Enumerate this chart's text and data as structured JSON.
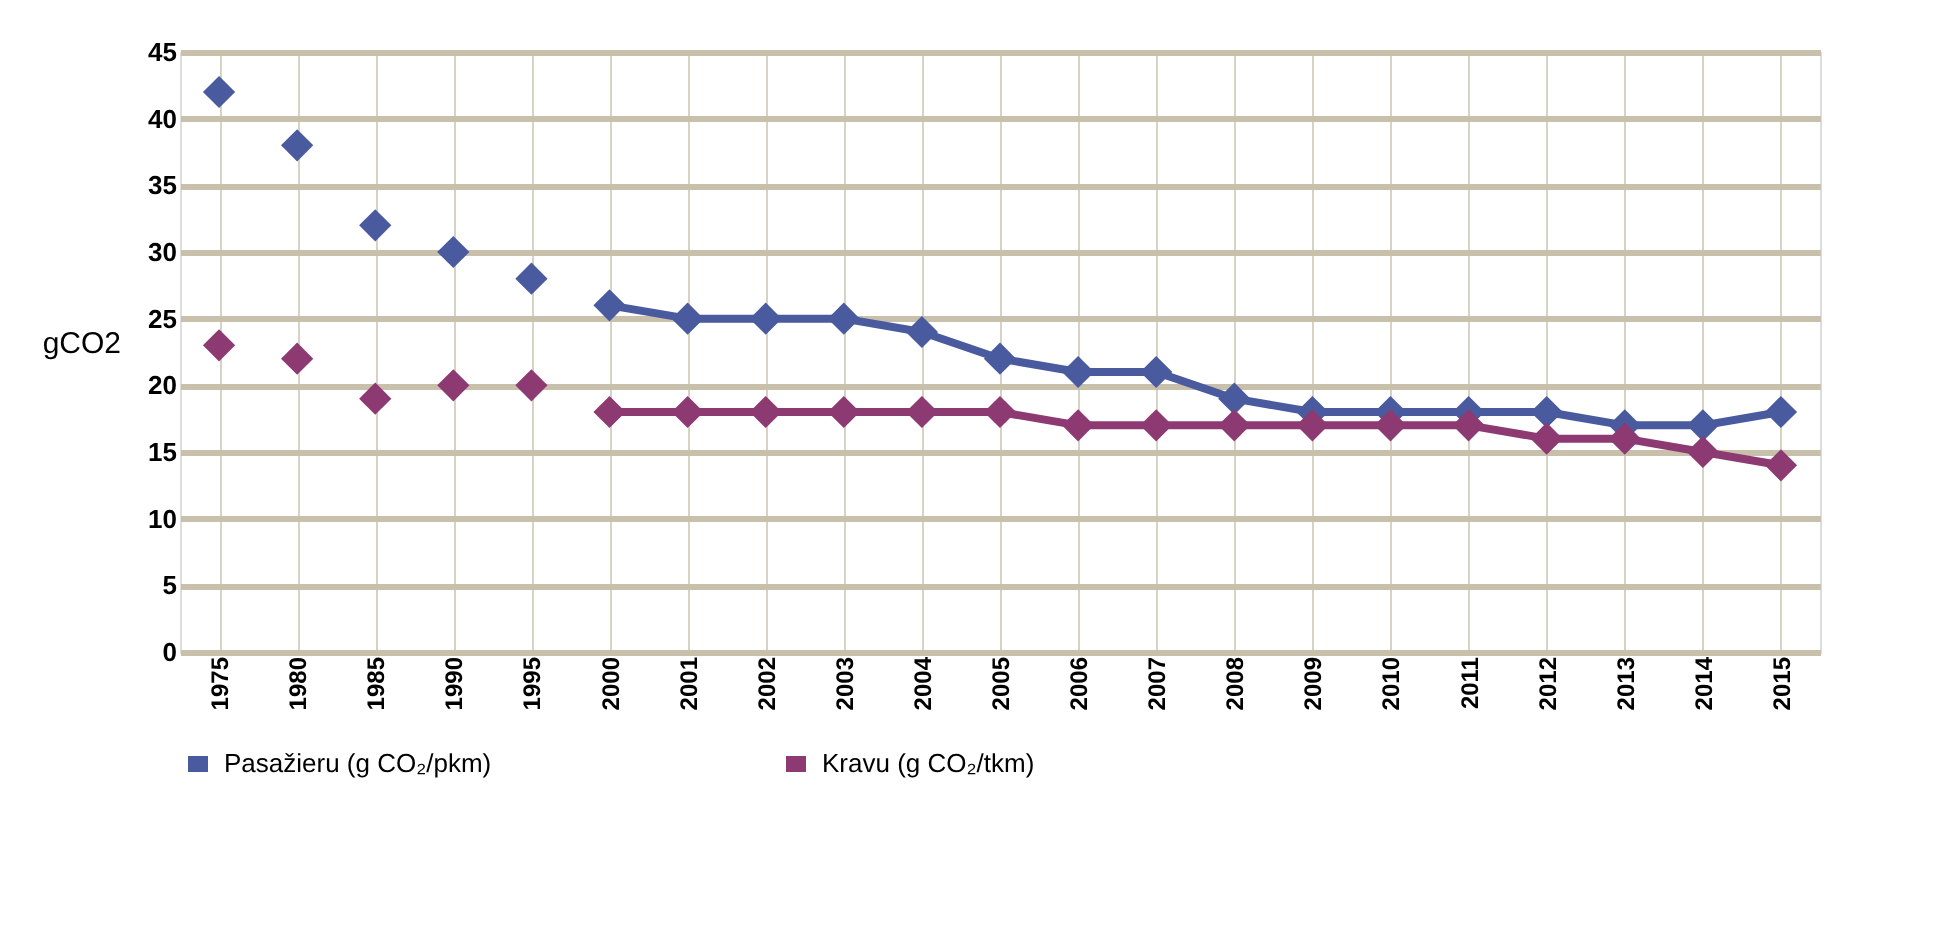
{
  "chart_data": {
    "type": "line",
    "ylabel": "gCO2",
    "categories": [
      "1975",
      "1980",
      "1985",
      "1990",
      "1995",
      "2000",
      "2001",
      "2002",
      "2003",
      "2004",
      "2005",
      "2006",
      "2007",
      "2008",
      "2009",
      "2010",
      "2011",
      "2012",
      "2013",
      "2014",
      "2015"
    ],
    "ylim": [
      0,
      45
    ],
    "yticks": [
      0,
      5,
      10,
      15,
      20,
      25,
      30,
      35,
      40,
      45
    ],
    "grid": true,
    "legend": "bottom",
    "marker": "diamond",
    "series": [
      {
        "type": "scatter",
        "color": "#4a5a9e",
        "values": [
          42,
          38,
          32,
          30,
          28,
          null,
          null,
          null,
          null,
          null,
          null,
          null,
          null,
          null,
          null,
          null,
          null,
          null,
          null,
          null,
          null
        ]
      },
      {
        "type": "scatter",
        "color": "#8e3a72",
        "values": [
          23,
          22,
          19,
          20,
          20,
          null,
          null,
          null,
          null,
          null,
          null,
          null,
          null,
          null,
          null,
          null,
          null,
          null,
          null,
          null,
          null
        ]
      },
      {
        "name": "Pasažieru    (g CO₂/pkm)",
        "color": "#4a5a9e",
        "values": [
          null,
          null,
          null,
          null,
          null,
          26,
          25,
          25,
          25,
          24,
          22,
          21,
          21,
          19,
          18,
          18,
          18,
          18,
          17,
          17,
          18
        ]
      },
      {
        "name": "Kravu    (g CO₂/tkm)",
        "color": "#8e3a72",
        "values": [
          null,
          null,
          null,
          null,
          null,
          18,
          18,
          18,
          18,
          18,
          18,
          17,
          17,
          17,
          17,
          17,
          17,
          16,
          16,
          15,
          14
        ]
      }
    ]
  }
}
